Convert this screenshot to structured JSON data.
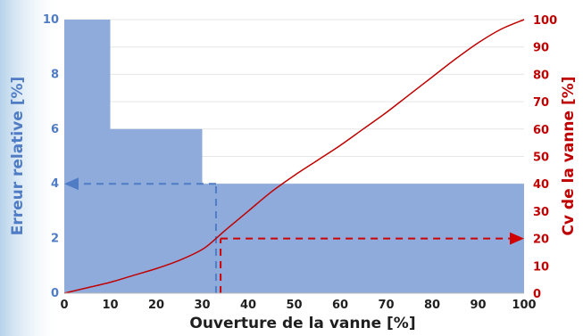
{
  "colors": {
    "bars": "#8eabdc",
    "left_axis": "#4f7cc4",
    "right_axis": "#c00000",
    "curve": "#c00000",
    "x_axis": "#1f1f1f",
    "guide_blue": "#4f7cc4",
    "guide_red": "#d00000",
    "background_blue": "#cfe3f3",
    "plot_bg": "#ffffff"
  },
  "chart_data": {
    "type": "bar",
    "xlabel": "Ouverture de la vanne [%]",
    "ylabel_left": "Erreur relative [%]",
    "ylabel_right": "Cv de la vanne [%]",
    "x_ticks": [
      "0",
      "10",
      "20",
      "30",
      "40",
      "50",
      "60",
      "70",
      "80",
      "90",
      "100"
    ],
    "y_left_ticks": [
      "0",
      "2",
      "4",
      "6",
      "8",
      "10"
    ],
    "y_right_ticks": [
      "0",
      "10",
      "20",
      "30",
      "40",
      "50",
      "60",
      "70",
      "80",
      "90",
      "100"
    ],
    "xlim": [
      0,
      100
    ],
    "ylim_left": [
      0,
      10
    ],
    "ylim_right": [
      0,
      100
    ],
    "error_steps": [
      {
        "x_start": 0,
        "x_end": 10,
        "value": 10
      },
      {
        "x_start": 10,
        "x_end": 30,
        "value": 6
      },
      {
        "x_start": 30,
        "x_end": 100,
        "value": 4
      }
    ],
    "cv_curve": {
      "x": [
        0,
        5,
        10,
        15,
        20,
        25,
        30,
        33,
        35,
        40,
        45,
        50,
        55,
        60,
        65,
        70,
        75,
        80,
        85,
        90,
        95,
        100
      ],
      "y": [
        0,
        2,
        4,
        6.5,
        9,
        12,
        16,
        20,
        23,
        30,
        37,
        43,
        48.5,
        54,
        60,
        66,
        72.5,
        79,
        85.5,
        91.5,
        96.5,
        100
      ]
    },
    "guides": [
      {
        "name": "blue",
        "from_x": 33,
        "level": 4,
        "axis": "left"
      },
      {
        "name": "red",
        "from_x": 34,
        "level": 20,
        "axis": "right"
      }
    ],
    "grid": true
  }
}
